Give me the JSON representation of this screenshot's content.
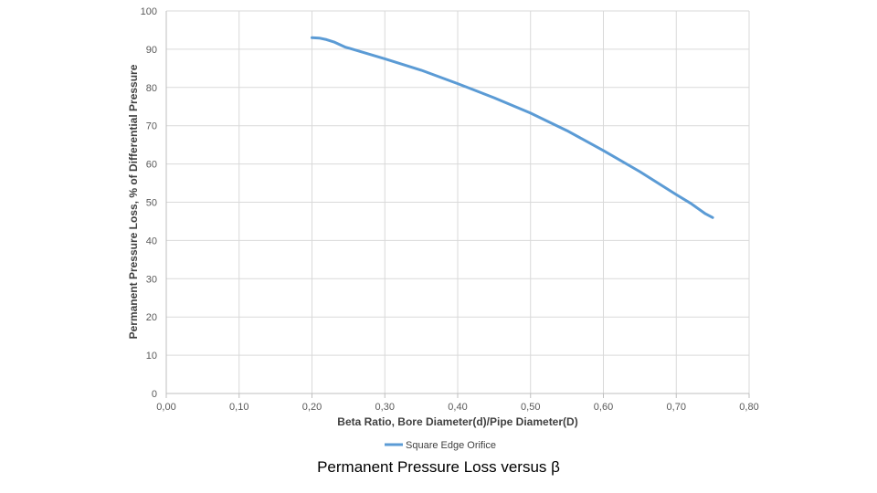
{
  "chart_data": {
    "type": "line",
    "xlabel": "Beta Ratio, Bore Diameter(d)/Pipe Diameter(D)",
    "ylabel": "Permanent Pressure Loss, % of Differential Pressure",
    "xlim": [
      0,
      0.8
    ],
    "ylim": [
      0,
      100
    ],
    "x_ticks": [
      "0,00",
      "0,10",
      "0,20",
      "0,30",
      "0,40",
      "0,50",
      "0,60",
      "0,70",
      "0,80"
    ],
    "y_ticks": [
      "0",
      "10",
      "20",
      "30",
      "40",
      "50",
      "60",
      "70",
      "80",
      "90",
      "100"
    ],
    "grid": true,
    "legend_position": "bottom",
    "series": [
      {
        "name": "Square Edge Orifice",
        "color": "#5b9bd5",
        "points": [
          {
            "x": 0.2,
            "y": 93.0
          },
          {
            "x": 0.21,
            "y": 92.9
          },
          {
            "x": 0.22,
            "y": 92.5
          },
          {
            "x": 0.23,
            "y": 91.9
          },
          {
            "x": 0.245,
            "y": 90.6
          },
          {
            "x": 0.3,
            "y": 87.5
          },
          {
            "x": 0.35,
            "y": 84.5
          },
          {
            "x": 0.4,
            "y": 81.0
          },
          {
            "x": 0.45,
            "y": 77.3
          },
          {
            "x": 0.5,
            "y": 73.3
          },
          {
            "x": 0.55,
            "y": 68.7
          },
          {
            "x": 0.6,
            "y": 63.5
          },
          {
            "x": 0.65,
            "y": 58.0
          },
          {
            "x": 0.7,
            "y": 52.0
          },
          {
            "x": 0.72,
            "y": 49.7
          },
          {
            "x": 0.74,
            "y": 47.0
          },
          {
            "x": 0.75,
            "y": 46.0
          }
        ]
      }
    ]
  },
  "caption": "Permanent Pressure Loss versus β"
}
